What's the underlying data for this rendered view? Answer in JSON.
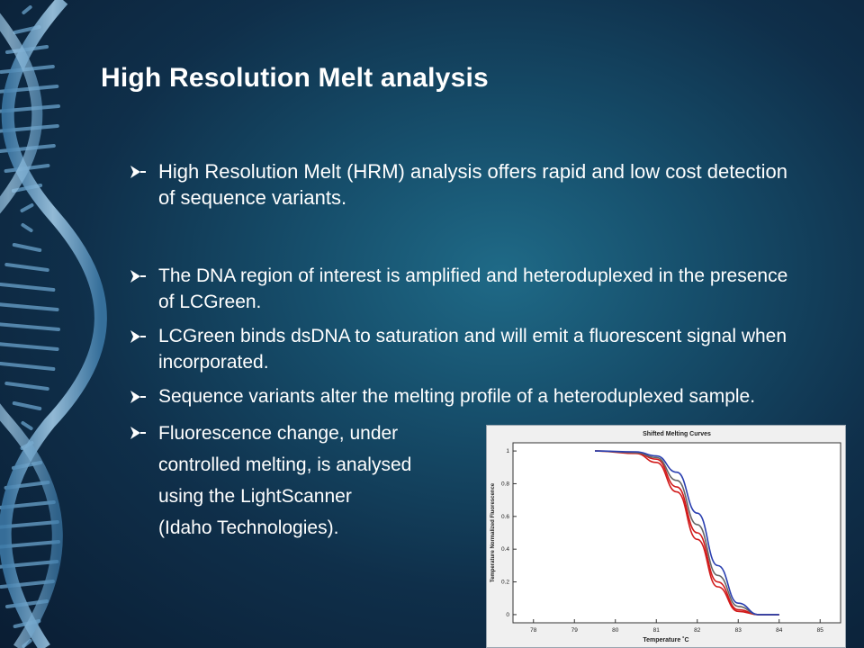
{
  "slide": {
    "title": "High Resolution Melt analysis",
    "bullets": [
      "High Resolution Melt (HRM) analysis offers rapid and low cost detection of sequence variants.",
      "The DNA region of interest is amplified and heteroduplexed in the presence of LCGreen.",
      "LCGreen binds dsDNA to saturation and will emit a fluorescent signal when incorporated.",
      "Sequence variants alter the melting profile of a heteroduplexed sample.",
      [
        "Fluorescence change, under",
        "controlled melting, is analysed",
        "using the LightScanner",
        "(Idaho Technologies)."
      ]
    ],
    "bullet_icon": "arrow-bullet-icon",
    "colors": {
      "background": "#164e6b",
      "text": "#ffffff",
      "dna": "#7fb2d6"
    }
  },
  "chart_data": {
    "type": "line",
    "title": "Shifted Melting Curves",
    "xlabel": "Temperature ˚C",
    "ylabel": "Temperature Normalized Fluorescence",
    "xlim": [
      77.5,
      85.5
    ],
    "ylim": [
      -0.05,
      1.05
    ],
    "xticks": [
      78,
      79,
      80,
      81,
      82,
      83,
      84,
      85
    ],
    "yticks": [
      0,
      0.2,
      0.4,
      0.6,
      0.8,
      1
    ],
    "series": [
      {
        "color": "#d11a1a",
        "x": [
          79.5,
          80.5,
          81,
          81.5,
          82,
          82.5,
          83,
          83.5,
          84
        ],
        "values": [
          1.0,
          0.99,
          0.95,
          0.78,
          0.5,
          0.2,
          0.03,
          0.0,
          0.0
        ]
      },
      {
        "color": "#d11a1a",
        "x": [
          79.5,
          80.5,
          81,
          81.5,
          82,
          82.5,
          83,
          83.5,
          84
        ],
        "values": [
          1.0,
          0.985,
          0.93,
          0.75,
          0.46,
          0.17,
          0.02,
          0.0,
          0.0
        ]
      },
      {
        "color": "#666666",
        "x": [
          79.5,
          80.5,
          81,
          81.5,
          82,
          82.5,
          83,
          83.5,
          84
        ],
        "values": [
          1.0,
          0.99,
          0.96,
          0.82,
          0.55,
          0.24,
          0.05,
          0.0,
          0.0
        ]
      },
      {
        "color": "#2a3fb0",
        "x": [
          79.5,
          80.5,
          81,
          81.5,
          82,
          82.5,
          83,
          83.5,
          84
        ],
        "values": [
          1.0,
          0.995,
          0.97,
          0.87,
          0.62,
          0.3,
          0.07,
          0.0,
          0.0
        ]
      }
    ]
  }
}
